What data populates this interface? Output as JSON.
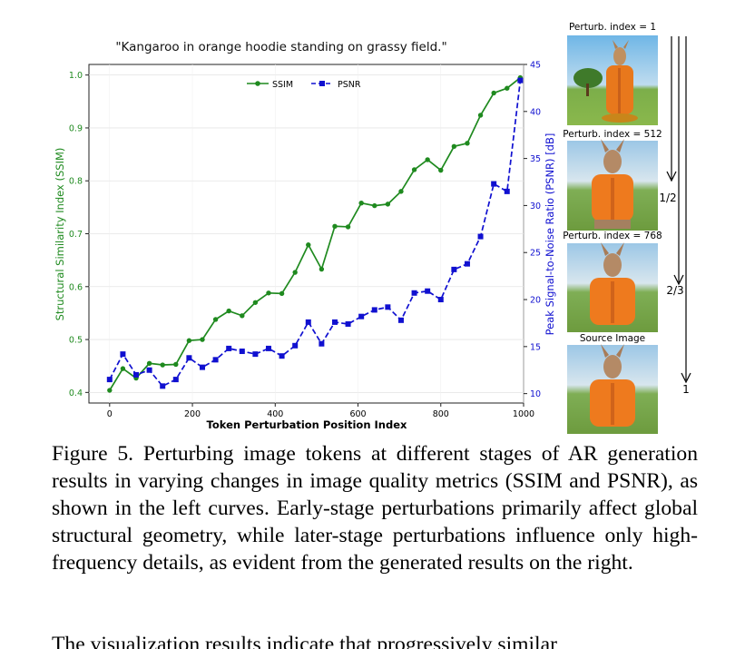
{
  "figure": {
    "prompt": "\"Kangaroo in orange hoodie standing on grassy field.\"",
    "image_titles": [
      "Perturb. index = 1",
      "Perturb. index = 512",
      "Perturb. index = 768",
      "Source Image"
    ],
    "arrow_labels": [
      "1/2",
      "2/3",
      "1"
    ]
  },
  "chart_data": {
    "type": "line",
    "xlabel": "Token Perturbation Position Index",
    "ylabel_left": "Structural Similarity Index (SSIM)",
    "ylabel_right": "Peak Signal-to-Noise Ratio (PSNR) [dB]",
    "xlim": [
      -50,
      1000
    ],
    "ylim_left": [
      0.38,
      1.02
    ],
    "ylim_right": [
      9,
      45
    ],
    "xticks": [
      0,
      200,
      400,
      600,
      800,
      1000
    ],
    "yticks_left": [
      0.4,
      0.5,
      0.6,
      0.7,
      0.8,
      0.9,
      1.0
    ],
    "yticks_right": [
      10,
      15,
      20,
      25,
      30,
      35,
      40,
      45
    ],
    "legend_position": "top-center",
    "grid": true,
    "series": [
      {
        "name": "SSIM",
        "axis": "left",
        "color": "#1f8a1f",
        "x": [
          0,
          32,
          64,
          96,
          128,
          160,
          192,
          224,
          256,
          288,
          320,
          352,
          384,
          416,
          448,
          480,
          512,
          544,
          576,
          608,
          640,
          672,
          704,
          736,
          768,
          800,
          832,
          864,
          896,
          928,
          960,
          992
        ],
        "values": [
          0.404,
          0.445,
          0.427,
          0.455,
          0.452,
          0.453,
          0.498,
          0.5,
          0.538,
          0.554,
          0.545,
          0.57,
          0.588,
          0.587,
          0.627,
          0.679,
          0.633,
          0.714,
          0.713,
          0.758,
          0.753,
          0.756,
          0.78,
          0.821,
          0.84,
          0.82,
          0.865,
          0.871,
          0.924,
          0.966,
          0.975,
          0.995
        ]
      },
      {
        "name": "PSNR",
        "axis": "right",
        "color": "#1010d0",
        "x": [
          0,
          32,
          64,
          96,
          128,
          160,
          192,
          224,
          256,
          288,
          320,
          352,
          384,
          416,
          448,
          480,
          512,
          544,
          576,
          608,
          640,
          672,
          704,
          736,
          768,
          800,
          832,
          864,
          896,
          928,
          960,
          992
        ],
        "values": [
          11.5,
          14.2,
          12.0,
          12.5,
          10.8,
          11.5,
          13.8,
          12.8,
          13.6,
          14.8,
          14.5,
          14.2,
          14.8,
          14.0,
          15.1,
          17.6,
          15.3,
          17.6,
          17.4,
          18.2,
          18.9,
          19.2,
          17.8,
          20.7,
          20.9,
          20.0,
          23.2,
          23.8,
          26.7,
          32.3,
          31.5,
          43.3
        ]
      }
    ]
  },
  "caption": "Figure 5. Perturbing image tokens at different stages of AR generation results in varying changes in image quality metrics (SSIM and PSNR), as shown in the left curves. Early-stage perturbations primarily affect global structural geometry, while later-stage perturbations influence only high-frequency details, as evident from the generated results on the right.",
  "next_text": "The visualization results indicate that progressively similar"
}
